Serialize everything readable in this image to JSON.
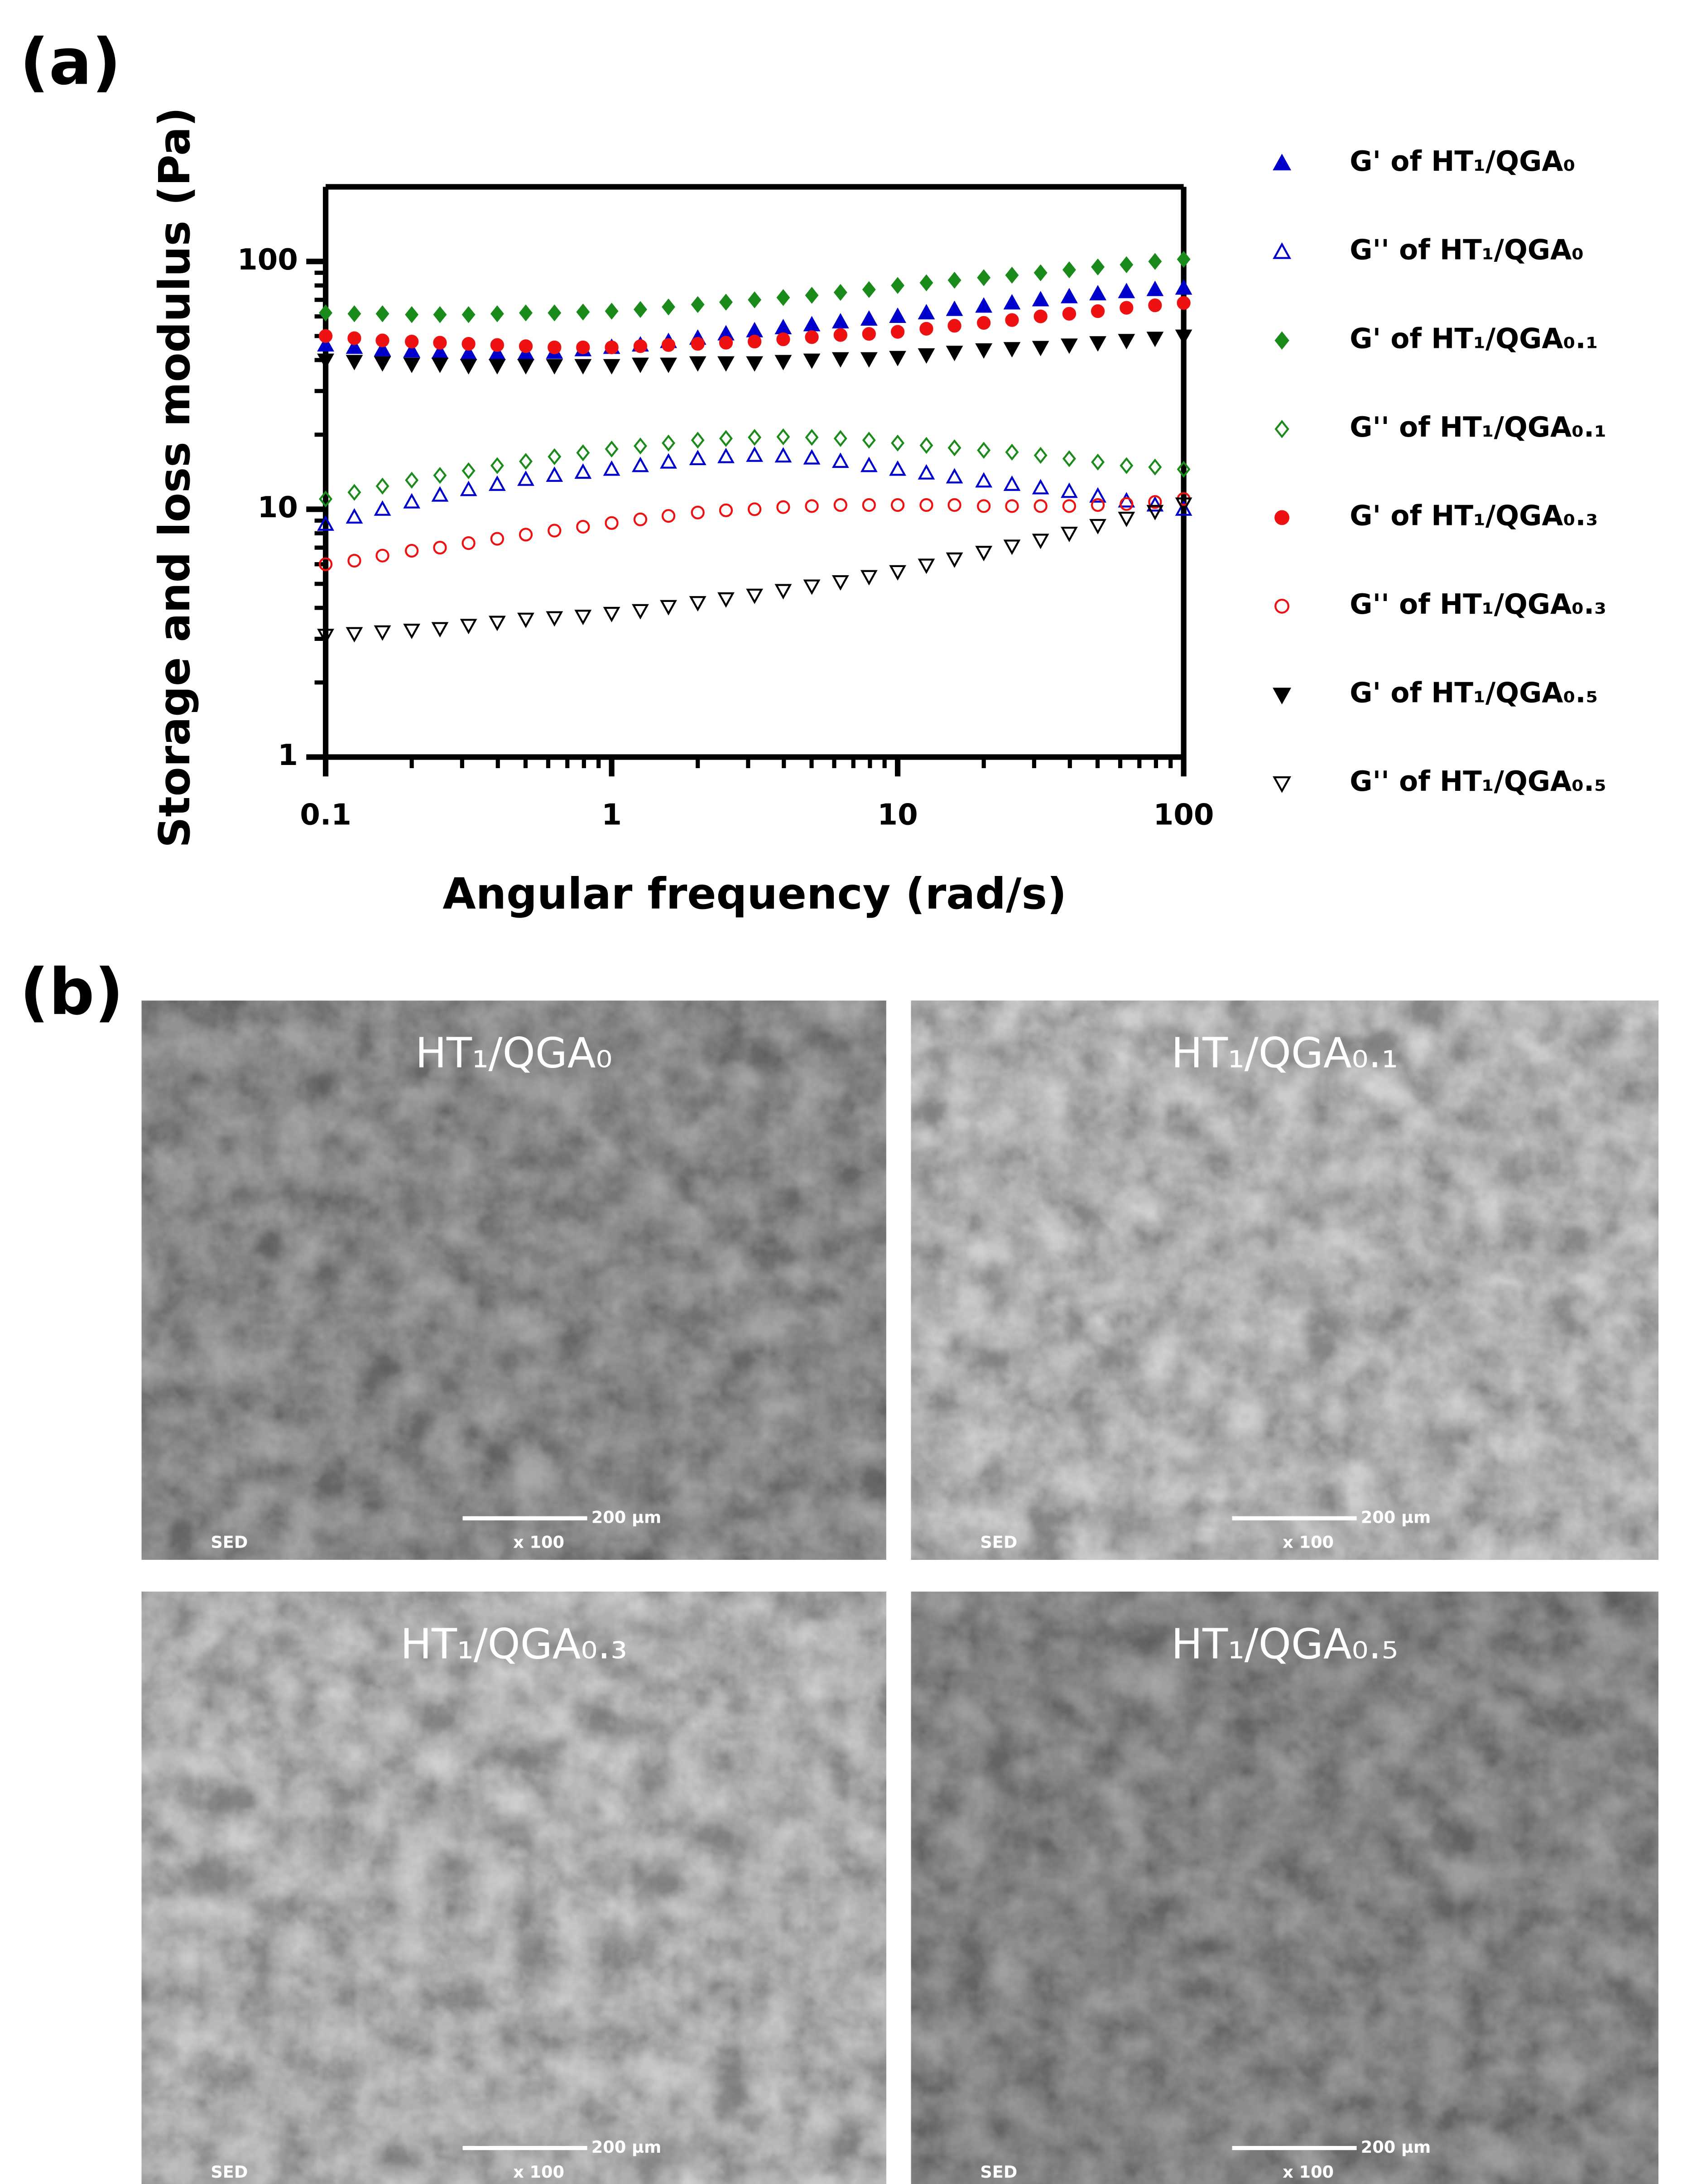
{
  "panel_labels": [
    "(a)",
    "(b)"
  ],
  "chart_data": {
    "type": "scatter",
    "x_label": "Angular frequency (rad/s)",
    "y_label": "Storage and loss modulus (Pa)",
    "xscale": "log",
    "yscale": "log",
    "xlim": [
      0.1,
      100
    ],
    "ylim": [
      1,
      200
    ],
    "xticks": [
      0.1,
      1,
      10,
      100
    ],
    "yticks": [
      1,
      10,
      100
    ],
    "xminorticks": [
      0.2,
      0.3,
      0.4,
      0.5,
      0.6,
      0.7,
      0.8,
      0.9,
      2,
      3,
      4,
      5,
      6,
      7,
      8,
      9,
      20,
      30,
      40,
      50,
      60,
      70,
      80,
      90
    ],
    "yminorticks": [
      2,
      3,
      4,
      5,
      6,
      7,
      8,
      9,
      20,
      30,
      40,
      50,
      60,
      70,
      80,
      90
    ],
    "x": [
      0.1,
      0.126,
      0.158,
      0.2,
      0.251,
      0.316,
      0.398,
      0.501,
      0.631,
      0.794,
      1,
      1.26,
      1.58,
      2,
      2.51,
      3.16,
      3.98,
      5.01,
      6.31,
      7.94,
      10,
      12.6,
      15.8,
      20,
      25.1,
      31.6,
      39.8,
      50.1,
      63.1,
      79.4,
      100
    ],
    "series": [
      {
        "name": "G' of HT₁/QGA₀",
        "color": "#0000cc",
        "marker": "triangle-up",
        "filled": true,
        "values": [
          46,
          45,
          44,
          43.5,
          43,
          42.5,
          42.5,
          42.5,
          43,
          44,
          45,
          46,
          47.5,
          49,
          51,
          52.5,
          54,
          55.5,
          57,
          58.5,
          60,
          62,
          64,
          66,
          68,
          70,
          72,
          74,
          75.5,
          77,
          78
        ]
      },
      {
        "name": "G'' of HT₁/QGA₀",
        "color": "#0000cc",
        "marker": "triangle-up",
        "filled": false,
        "values": [
          8.7,
          9.3,
          10,
          10.7,
          11.4,
          12,
          12.6,
          13.2,
          13.7,
          14.1,
          14.5,
          15,
          15.5,
          16,
          16.3,
          16.5,
          16.4,
          16.1,
          15.6,
          15,
          14.5,
          14,
          13.5,
          13,
          12.6,
          12.2,
          11.8,
          11.3,
          10.8,
          10.4,
          10
        ]
      },
      {
        "name": "G' of HT₁/QGA₀.₁",
        "color": "#1a8a1a",
        "marker": "diamond",
        "filled": true,
        "values": [
          62,
          61.5,
          61.5,
          61,
          61,
          61,
          61.5,
          62,
          62,
          62.5,
          63,
          64,
          65.5,
          67,
          68.5,
          70,
          71.5,
          73,
          75,
          77,
          80,
          82,
          84,
          86,
          88,
          90,
          92.5,
          95,
          97,
          100,
          102
        ]
      },
      {
        "name": "G'' of HT₁/QGA₀.₁",
        "color": "#1a8a1a",
        "marker": "diamond",
        "filled": false,
        "values": [
          11,
          11.7,
          12.4,
          13.1,
          13.7,
          14.3,
          15,
          15.6,
          16.3,
          16.9,
          17.5,
          18,
          18.5,
          19,
          19.3,
          19.5,
          19.6,
          19.5,
          19.3,
          19,
          18.5,
          18.1,
          17.7,
          17.3,
          17,
          16.5,
          16,
          15.5,
          15,
          14.8,
          14.5
        ]
      },
      {
        "name": "G' of HT₁/QGA₀.₃",
        "color": "#ee1111",
        "marker": "circle",
        "filled": true,
        "values": [
          50,
          49,
          48,
          47.5,
          47,
          46.5,
          46,
          45.5,
          45,
          45,
          45,
          45.5,
          46,
          46.5,
          47,
          47.5,
          48.5,
          49.5,
          50.5,
          51,
          52,
          53.5,
          55,
          56.5,
          58,
          60,
          61.5,
          63,
          65,
          66.5,
          68
        ]
      },
      {
        "name": "G'' of HT₁/QGA₀.₃",
        "color": "#ee1111",
        "marker": "circle",
        "filled": false,
        "values": [
          6,
          6.2,
          6.5,
          6.8,
          7,
          7.3,
          7.6,
          7.9,
          8.2,
          8.5,
          8.8,
          9.1,
          9.4,
          9.7,
          9.9,
          10,
          10.2,
          10.3,
          10.4,
          10.4,
          10.4,
          10.4,
          10.4,
          10.3,
          10.3,
          10.3,
          10.3,
          10.4,
          10.5,
          10.7,
          11
        ]
      },
      {
        "name": "G' of HT₁/QGA₀.₅",
        "color": "#000000",
        "marker": "triangle-down",
        "filled": true,
        "values": [
          40,
          39.5,
          39,
          38.5,
          38.5,
          38,
          38,
          38,
          38,
          38,
          38,
          38.5,
          38.5,
          39,
          39,
          39,
          39.5,
          40,
          40.5,
          40.5,
          41,
          42,
          43,
          44,
          44.5,
          45,
          46,
          47,
          48,
          49,
          50
        ]
      },
      {
        "name": "G'' of HT₁/QGA₀.₅",
        "color": "#000000",
        "marker": "triangle-down",
        "filled": false,
        "values": [
          3.1,
          3.15,
          3.2,
          3.25,
          3.3,
          3.4,
          3.5,
          3.6,
          3.65,
          3.7,
          3.8,
          3.9,
          4.05,
          4.2,
          4.35,
          4.5,
          4.7,
          4.9,
          5.1,
          5.35,
          5.6,
          5.95,
          6.3,
          6.7,
          7.1,
          7.5,
          8,
          8.6,
          9.2,
          9.8,
          10.5
        ]
      }
    ]
  },
  "sem_images": [
    {
      "label": "HT₁/QGA₀",
      "detector": "SED",
      "scale_bar": "200 µm",
      "magnification": "x 100"
    },
    {
      "label": "HT₁/QGA₀.₁",
      "detector": "SED",
      "scale_bar": "200 µm",
      "magnification": "x 100"
    },
    {
      "label": "HT₁/QGA₀.₃",
      "detector": "SED",
      "scale_bar": "200 µm",
      "magnification": "x 100"
    },
    {
      "label": "HT₁/QGA₀.₅",
      "detector": "SED",
      "scale_bar": "200 µm",
      "magnification": "x 100"
    }
  ]
}
